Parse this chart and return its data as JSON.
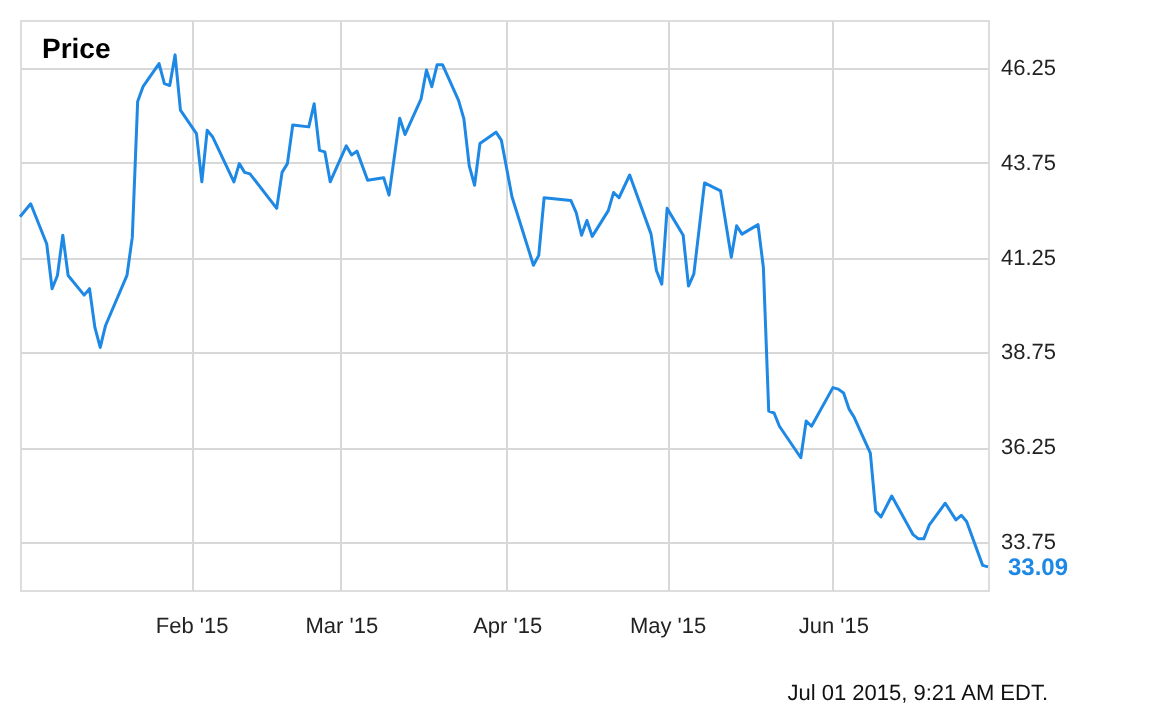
{
  "chart_data": {
    "type": "line",
    "title": "Price",
    "x": [
      "2014-12-31",
      "2015-01-02",
      "2015-01-05",
      "2015-01-06",
      "2015-01-07",
      "2015-01-08",
      "2015-01-09",
      "2015-01-12",
      "2015-01-13",
      "2015-01-14",
      "2015-01-15",
      "2015-01-16",
      "2015-01-20",
      "2015-01-21",
      "2015-01-22",
      "2015-01-23",
      "2015-01-26",
      "2015-01-27",
      "2015-01-28",
      "2015-01-29",
      "2015-01-30",
      "2015-02-02",
      "2015-02-03",
      "2015-02-04",
      "2015-02-05",
      "2015-02-09",
      "2015-02-10",
      "2015-02-11",
      "2015-02-12",
      "2015-02-17",
      "2015-02-18",
      "2015-02-19",
      "2015-02-20",
      "2015-02-23",
      "2015-02-24",
      "2015-02-25",
      "2015-02-26",
      "2015-02-27",
      "2015-03-02",
      "2015-03-03",
      "2015-03-04",
      "2015-03-06",
      "2015-03-09",
      "2015-03-10",
      "2015-03-12",
      "2015-03-13",
      "2015-03-16",
      "2015-03-17",
      "2015-03-18",
      "2015-03-19",
      "2015-03-20",
      "2015-03-23",
      "2015-03-24",
      "2015-03-25",
      "2015-03-26",
      "2015-03-27",
      "2015-03-30",
      "2015-03-31",
      "2015-04-02",
      "2015-04-06",
      "2015-04-07",
      "2015-04-08",
      "2015-04-13",
      "2015-04-14",
      "2015-04-15",
      "2015-04-16",
      "2015-04-17",
      "2015-04-20",
      "2015-04-21",
      "2015-04-22",
      "2015-04-24",
      "2015-04-28",
      "2015-04-29",
      "2015-04-30",
      "2015-05-01",
      "2015-05-04",
      "2015-05-05",
      "2015-05-06",
      "2015-05-08",
      "2015-05-11",
      "2015-05-12",
      "2015-05-13",
      "2015-05-14",
      "2015-05-15",
      "2015-05-18",
      "2015-05-19",
      "2015-05-20",
      "2015-05-21",
      "2015-05-22",
      "2015-05-26",
      "2015-05-27",
      "2015-05-28",
      "2015-06-01",
      "2015-06-02",
      "2015-06-03",
      "2015-06-04",
      "2015-06-05",
      "2015-06-08",
      "2015-06-09",
      "2015-06-10",
      "2015-06-12",
      "2015-06-16",
      "2015-06-17",
      "2015-06-18",
      "2015-06-19",
      "2015-06-22",
      "2015-06-24",
      "2015-06-25",
      "2015-06-26",
      "2015-06-29",
      "2015-06-30"
    ],
    "series": [
      {
        "color": "#1e88e5",
        "values": [
          42.33,
          42.67,
          41.61,
          40.43,
          40.78,
          41.84,
          40.78,
          40.26,
          40.43,
          39.41,
          38.88,
          39.46,
          40.78,
          41.79,
          45.37,
          45.76,
          46.37,
          45.84,
          45.79,
          46.6,
          45.14,
          44.52,
          43.25,
          44.61,
          44.44,
          43.25,
          43.73,
          43.5,
          43.46,
          42.55,
          43.5,
          43.73,
          44.75,
          44.7,
          45.31,
          44.08,
          44.04,
          43.25,
          44.2,
          43.96,
          44.06,
          43.29,
          43.36,
          42.9,
          44.93,
          44.5,
          45.44,
          46.2,
          45.76,
          46.34,
          46.34,
          45.4,
          44.91,
          43.67,
          43.16,
          44.26,
          44.56,
          44.35,
          42.85,
          41.05,
          41.31,
          42.83,
          42.76,
          42.44,
          41.84,
          42.23,
          41.81,
          42.49,
          42.97,
          42.83,
          43.43,
          41.87,
          40.91,
          40.55,
          42.55,
          41.84,
          40.5,
          40.82,
          43.22,
          43.01,
          42.14,
          41.26,
          42.09,
          41.87,
          42.12,
          40.99,
          37.2,
          37.15,
          36.8,
          35.97,
          36.94,
          36.8,
          37.82,
          37.78,
          37.68,
          37.26,
          37.03,
          36.09,
          34.56,
          34.41,
          34.96,
          33.94,
          33.83,
          33.83,
          34.19,
          34.77,
          34.33,
          34.45,
          34.29,
          33.13,
          33.09
        ]
      }
    ],
    "xlim": [
      "2014-12-31",
      "2015-06-30"
    ],
    "xticks": [
      {
        "value": "2015-02-01",
        "label": "Feb '15"
      },
      {
        "value": "2015-03-01",
        "label": "Mar '15"
      },
      {
        "value": "2015-04-01",
        "label": "Apr '15"
      },
      {
        "value": "2015-05-01",
        "label": "May '15"
      },
      {
        "value": "2015-06-01",
        "label": "Jun '15"
      }
    ],
    "ylim": [
      32.48,
      47.52
    ],
    "yticks": [
      33.75,
      36.25,
      38.75,
      41.25,
      43.75,
      46.25
    ],
    "grid": true,
    "marker": "none",
    "line_style": "solid",
    "annotations": [
      {
        "text": "33.09",
        "x": "2015-06-30",
        "y": 33.09
      },
      "Jul 01 2015, 9:21 AM EDT."
    ]
  }
}
